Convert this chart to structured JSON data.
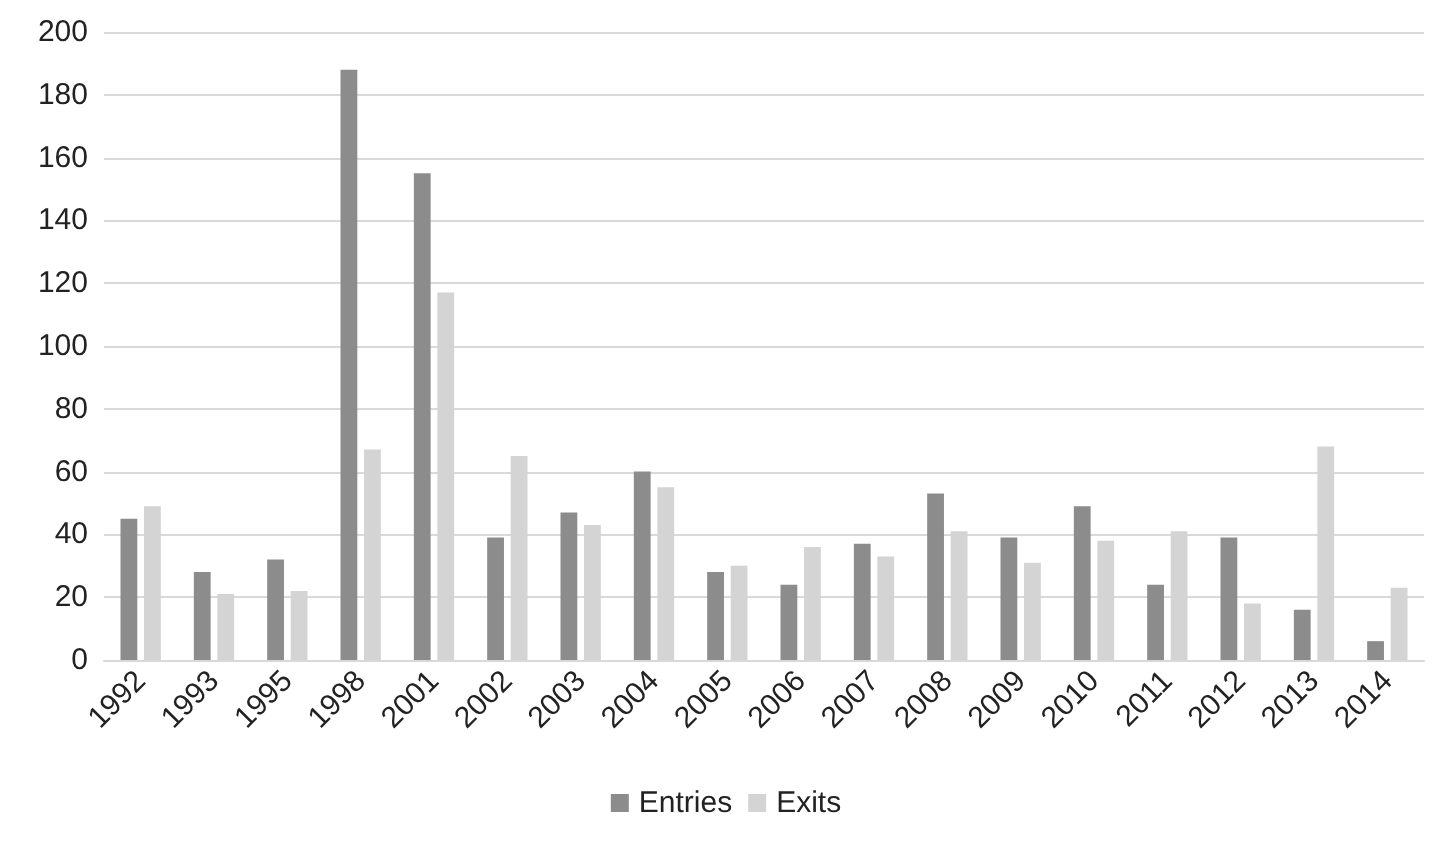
{
  "chart_data": {
    "type": "bar",
    "categories": [
      "1992",
      "1993",
      "1995",
      "1998",
      "2001",
      "2002",
      "2003",
      "2004",
      "2005",
      "2006",
      "2007",
      "2008",
      "2009",
      "2010",
      "2011",
      "2012",
      "2013",
      "2014"
    ],
    "series": [
      {
        "name": "Entries",
        "color": "#8c8c8c",
        "values": [
          45,
          28,
          32,
          188,
          155,
          39,
          47,
          60,
          28,
          24,
          37,
          53,
          39,
          49,
          24,
          39,
          16,
          6
        ]
      },
      {
        "name": "Exits",
        "color": "#d4d4d4",
        "values": [
          49,
          21,
          22,
          67,
          117,
          65,
          43,
          55,
          30,
          36,
          33,
          41,
          31,
          38,
          41,
          18,
          68,
          23
        ]
      }
    ],
    "ylim": [
      0,
      200
    ],
    "yticks": [
      0,
      20,
      40,
      60,
      80,
      100,
      120,
      140,
      160,
      180,
      200
    ],
    "grid": "y",
    "legend": "bottom"
  }
}
